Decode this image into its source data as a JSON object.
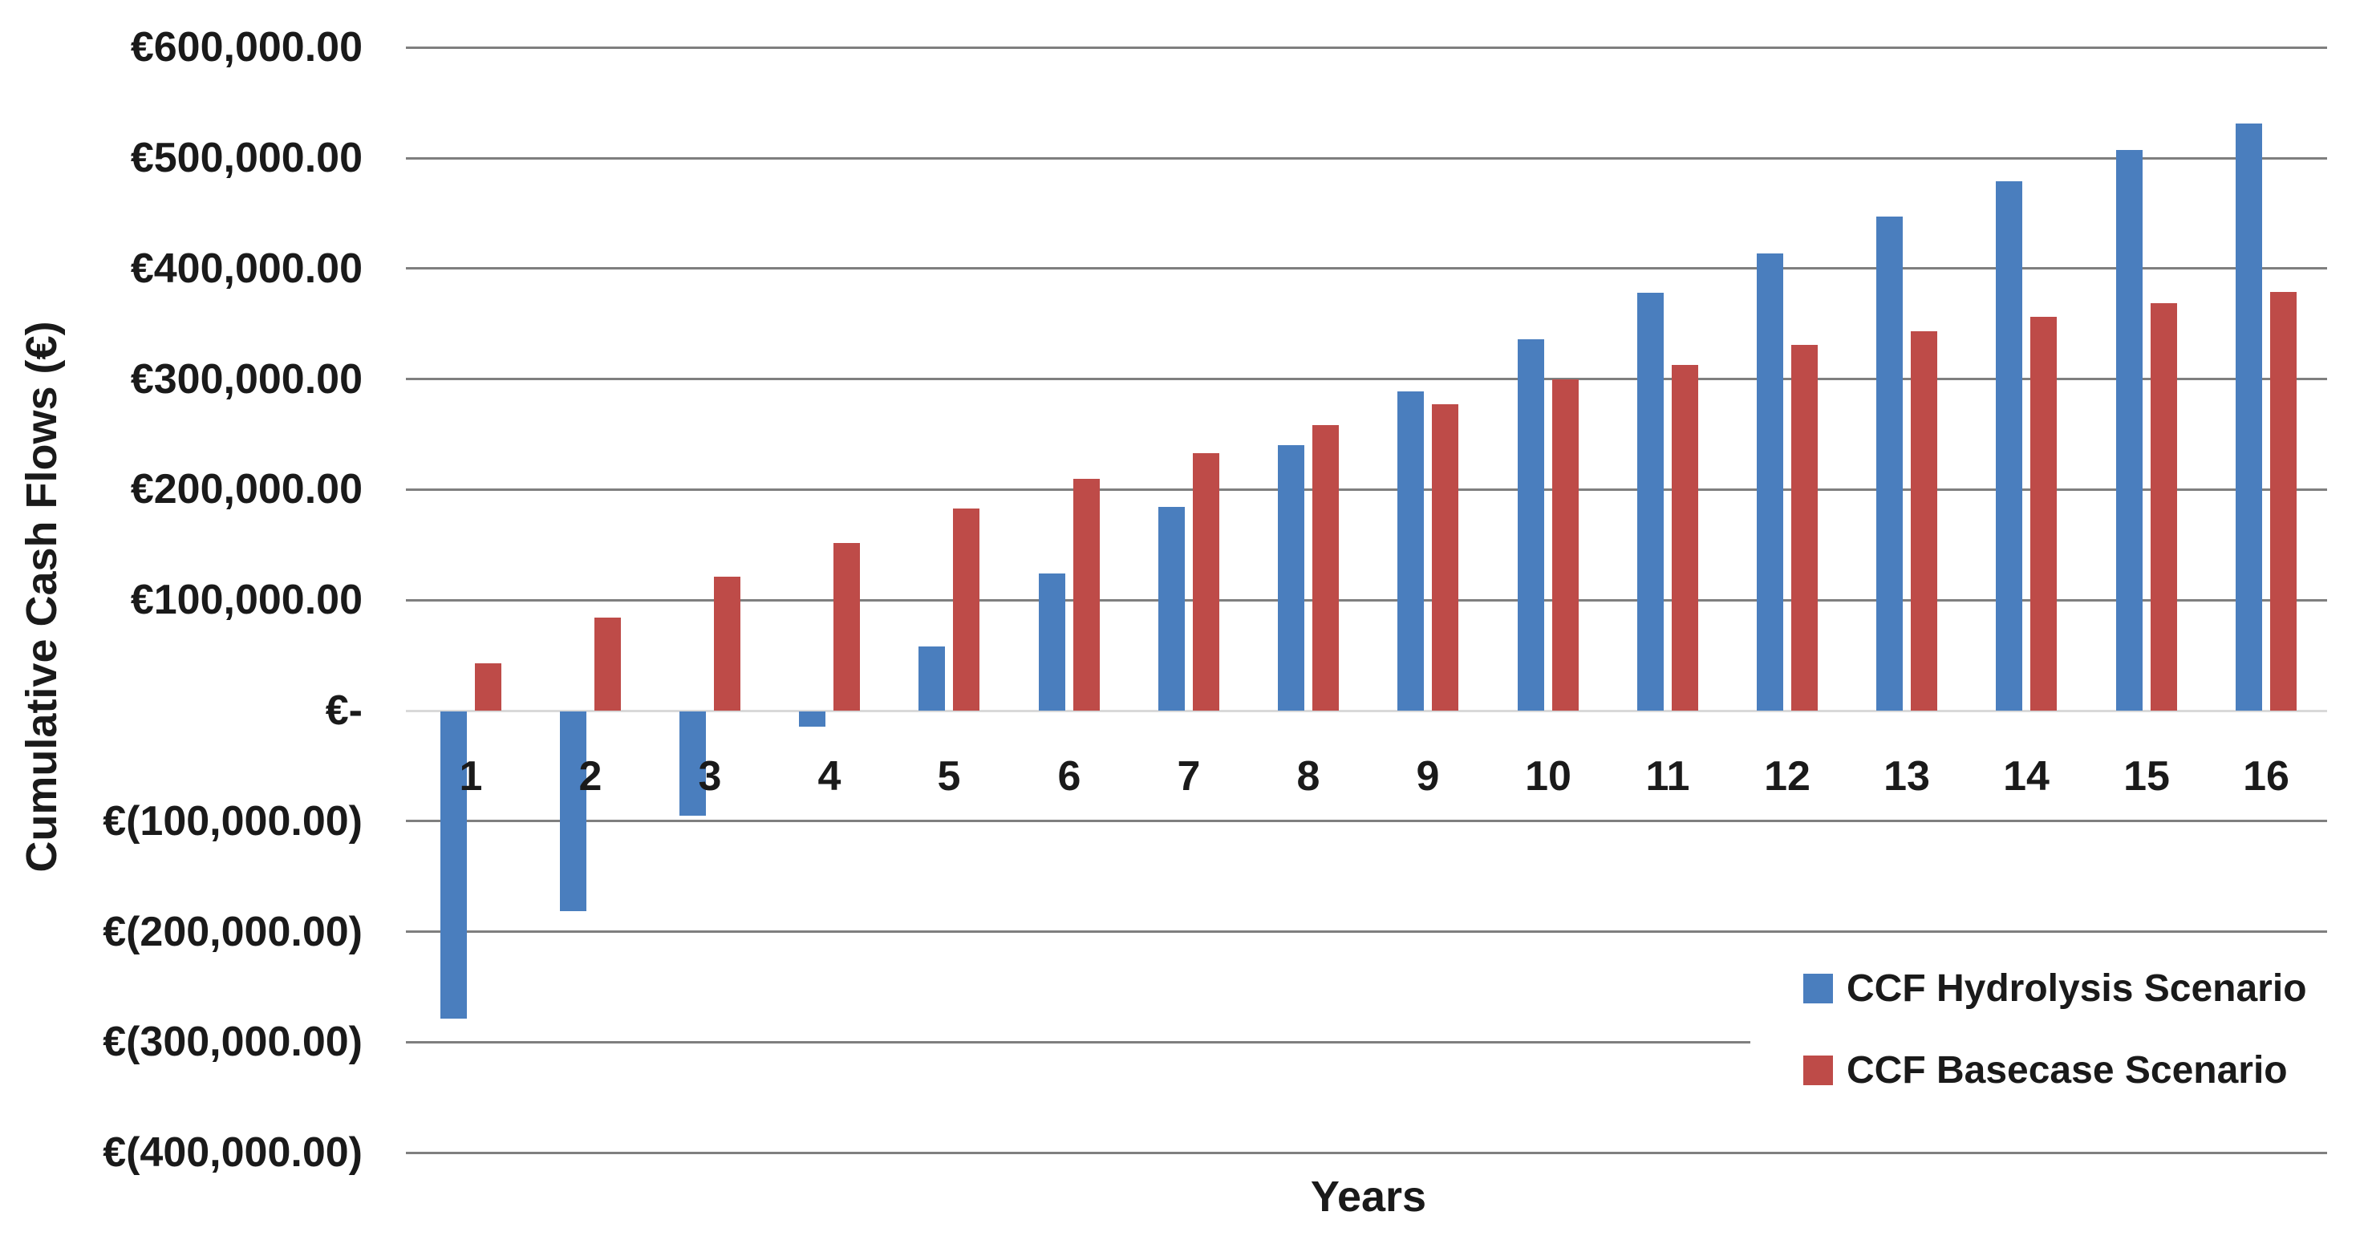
{
  "y_axis": {
    "title": "Cumulative Cash Flows (€)",
    "tick_labels": [
      "€600,000.00",
      "€500,000.00",
      "€400,000.00",
      "€300,000.00",
      "€200,000.00",
      "€100,000.00",
      "€-",
      "€(100,000.00)",
      "€(200,000.00)",
      "€(300,000.00)",
      "€(400,000.00)"
    ]
  },
  "x_axis": {
    "title": "Years",
    "tick_labels": [
      "1",
      "2",
      "3",
      "4",
      "5",
      "6",
      "7",
      "8",
      "9",
      "10",
      "11",
      "12",
      "13",
      "14",
      "15",
      "16"
    ]
  },
  "legend": {
    "items": [
      {
        "label": "CCF Hydrolysis Scenario",
        "color": "#4A7EBE"
      },
      {
        "label": "CCF Basecase Scenario",
        "color": "#BE4B48"
      }
    ]
  },
  "colors": {
    "hydrolysis_blue": "#4A7EBE",
    "basecase_red": "#BE4B48",
    "gridline": "#7F7F7F",
    "zero_axis": "#D9D9D9",
    "text": "#1A1A1A",
    "background": "#FFFFFF"
  },
  "chart_data": {
    "type": "bar",
    "title": "",
    "categories": [
      1,
      2,
      3,
      4,
      5,
      6,
      7,
      8,
      9,
      10,
      11,
      12,
      13,
      14,
      15,
      16
    ],
    "series": [
      {
        "name": "CCF Hydrolysis Scenario",
        "color": "#4A7EBE",
        "values": [
          -278000,
          -181000,
          -94000,
          -14000,
          58000,
          124000,
          184000,
          240000,
          289000,
          336000,
          378000,
          414000,
          447000,
          479000,
          507000,
          531000
        ]
      },
      {
        "name": "CCF Basecase Scenario",
        "color": "#BE4B48",
        "values": [
          43000,
          84000,
          121000,
          152000,
          183000,
          210000,
          233000,
          258000,
          277000,
          300000,
          313000,
          331000,
          343000,
          356000,
          369000,
          379000
        ]
      }
    ],
    "xlabel": "Years",
    "ylabel": "Cumulative Cash Flows (€)",
    "ylim": [
      -400000,
      600000
    ],
    "ytick_step": 100000,
    "value_format": "euro accounting (negatives in parentheses)",
    "grid": "horizontal",
    "legend_position": "inside-bottom-right"
  }
}
